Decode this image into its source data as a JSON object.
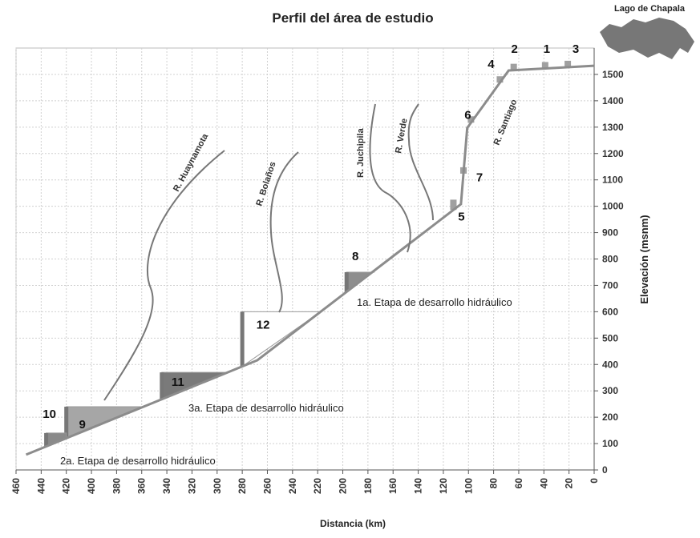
{
  "chart_data": {
    "type": "line",
    "title": "Perfil del área de estudio",
    "xlabel": "Distancia (km)",
    "ylabel": "Elevación  (msnm)",
    "x": [
      452,
      268,
      106,
      101,
      68,
      0
    ],
    "series": [
      {
        "color": "#8c8c8c",
        "values": [
          58,
          416,
          1008,
          1297,
          1515,
          1533
        ]
      }
    ],
    "xlim": [
      460,
      0
    ],
    "ylim": [
      0,
      1600
    ],
    "xticks": [
      460,
      440,
      420,
      400,
      380,
      360,
      340,
      320,
      300,
      280,
      260,
      240,
      220,
      200,
      180,
      160,
      140,
      120,
      100,
      80,
      60,
      40,
      20,
      0
    ],
    "yticks": [
      0,
      100,
      200,
      300,
      400,
      500,
      600,
      700,
      800,
      900,
      1000,
      1100,
      1200,
      1300,
      1400,
      1500
    ],
    "grid": true,
    "dams": [
      {
        "label": "1",
        "x": 39,
        "crest": 1530,
        "color": "#a0a0a0"
      },
      {
        "label": "2",
        "x": 64,
        "crest": 1530,
        "color": "#a0a0a0"
      },
      {
        "label": "3",
        "x": 21,
        "crest": 1530,
        "color": "#a0a0a0"
      },
      {
        "label": "4",
        "x": 75,
        "crest": 1485,
        "color": "#a0a0a0"
      },
      {
        "label": "5",
        "x": 112,
        "crest": 1025,
        "color": "#a0a0a0"
      },
      {
        "label": "6",
        "x": 98,
        "crest": 1280,
        "color": "#a0a0a0"
      },
      {
        "label": "7",
        "x": 104,
        "crest": 1110,
        "color": "#a0a0a0"
      },
      {
        "label": "8",
        "x": 197,
        "crest": 750,
        "reservoir_end": 175,
        "color": "#8e8e8e"
      },
      {
        "label": "9",
        "x": 420,
        "crest": 240,
        "reservoir_end": 358,
        "color": "#a6a6a6"
      },
      {
        "label": "10",
        "x": 436,
        "crest": 140,
        "reservoir_end": 420,
        "color": "#8a8a8a"
      },
      {
        "label": "11",
        "x": 344,
        "crest": 370,
        "reservoir_end": 293,
        "color": "#7a7a7a"
      },
      {
        "label": "12",
        "x": 280,
        "crest": 600,
        "reservoir_end": 218,
        "color": "#ffffff"
      }
    ],
    "stages": [
      "1a. Etapa de desarrollo hidráulico",
      "3a. Etapa de desarrollo hidráulico",
      "2a. Etapa de desarrollo hidráulico"
    ],
    "rivers": [
      "R. Huaynamota",
      "R. Bolaños",
      "R. Juchipila",
      "R. Verde",
      "R. Santiago"
    ],
    "inset_label": "Lago de Chapala"
  }
}
